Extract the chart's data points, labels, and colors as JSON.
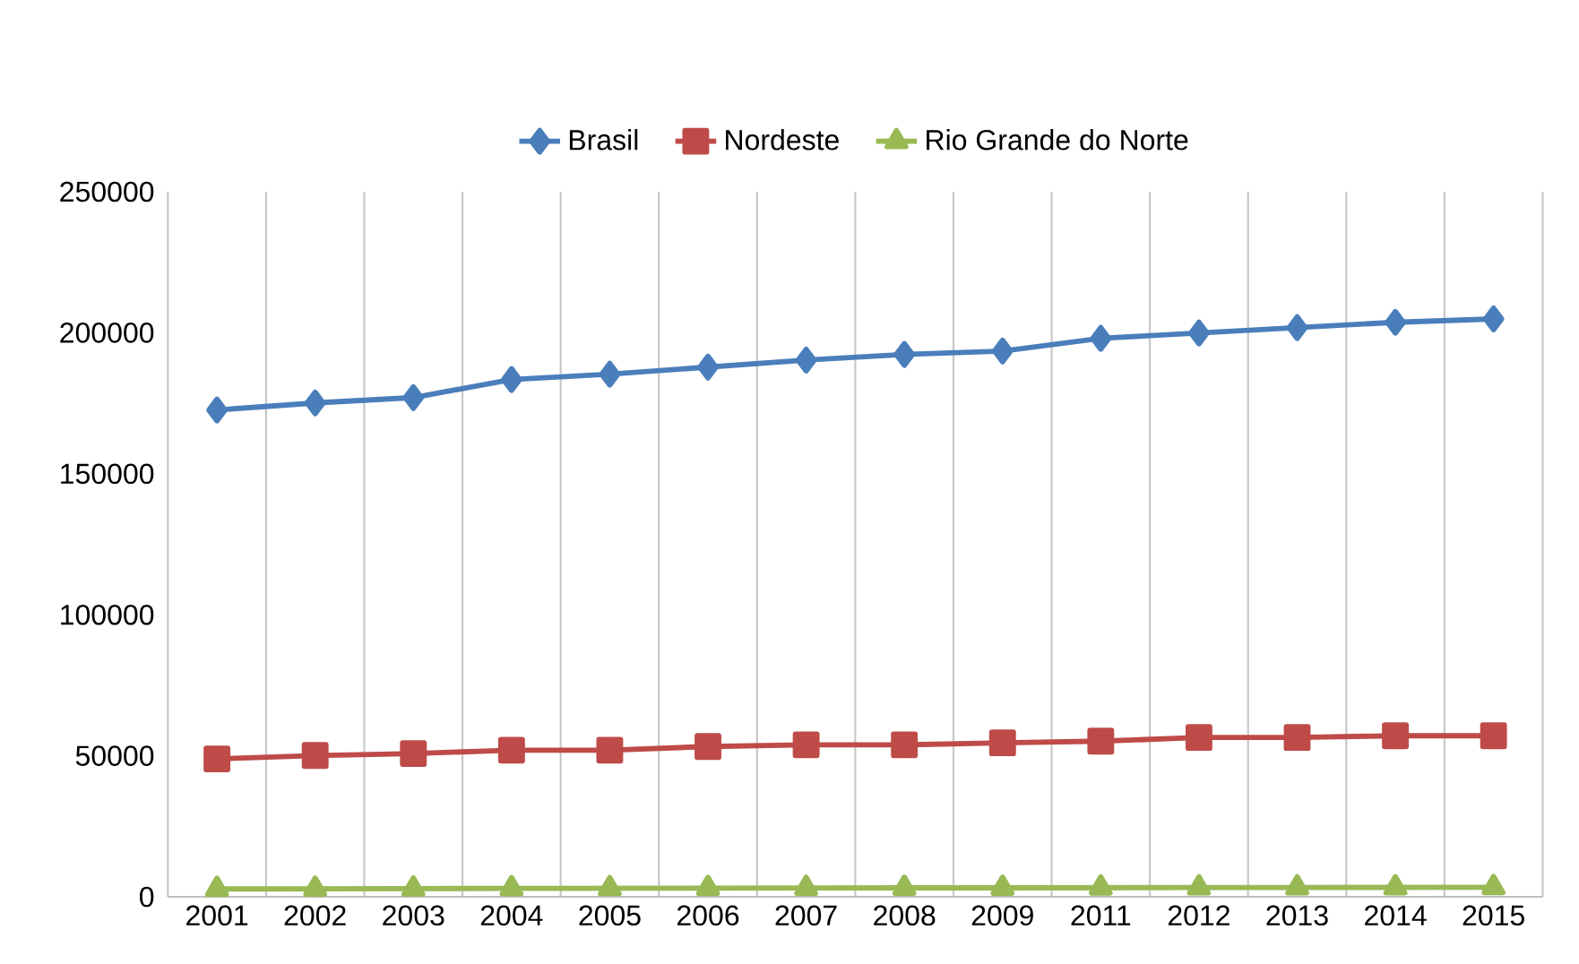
{
  "chart_data": {
    "type": "line",
    "categories": [
      "2001",
      "2002",
      "2003",
      "2004",
      "2005",
      "2006",
      "2007",
      "2008",
      "2009",
      "2011",
      "2012",
      "2013",
      "2014",
      "2015"
    ],
    "series": [
      {
        "name": "Brasil",
        "color": "#4a7ebb",
        "marker": "diamond",
        "values": [
          172600,
          175100,
          177000,
          183400,
          185300,
          187800,
          190300,
          192300,
          193500,
          198000,
          199900,
          201800,
          203700,
          204900
        ]
      },
      {
        "name": "Nordeste",
        "color": "#be4b48",
        "marker": "square",
        "values": [
          48900,
          50100,
          50800,
          52000,
          52000,
          53300,
          53900,
          53900,
          54600,
          55200,
          56500,
          56500,
          57100,
          57100
        ]
      },
      {
        "name": "Rio Grande do Norte",
        "color": "#98b954",
        "marker": "triangle",
        "values": [
          2800,
          2850,
          2900,
          3000,
          3050,
          3100,
          3150,
          3200,
          3200,
          3250,
          3300,
          3300,
          3350,
          3400
        ]
      }
    ],
    "ylim": [
      0,
      250000
    ],
    "yticks": [
      0,
      50000,
      100000,
      150000,
      200000,
      250000
    ],
    "grid": "x",
    "legend": "top",
    "line_style": "solid"
  }
}
